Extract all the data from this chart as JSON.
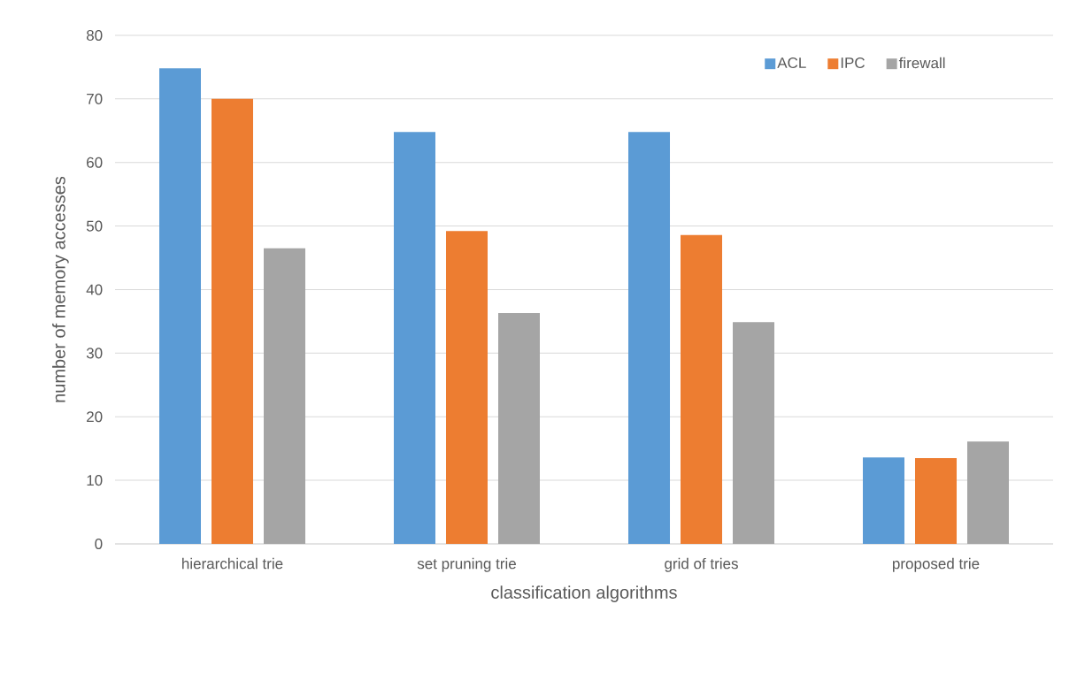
{
  "chart_data": {
    "type": "bar",
    "xlabel": "classification algorithms",
    "ylabel": "number of memory accesses",
    "categories": [
      "hierarchical trie",
      "set pruning trie",
      "grid of tries",
      "proposed trie"
    ],
    "series": [
      {
        "name": "ACL",
        "color": "#5b9bd5",
        "values": [
          74.8,
          64.8,
          64.8,
          13.6
        ]
      },
      {
        "name": "IPC",
        "color": "#ed7d31",
        "values": [
          70.0,
          49.2,
          48.6,
          13.5
        ]
      },
      {
        "name": "firewall",
        "color": "#a5a5a5",
        "values": [
          46.5,
          36.3,
          34.9,
          16.1
        ]
      }
    ],
    "ylim": [
      0,
      80
    ],
    "yticks": [
      0,
      10,
      20,
      30,
      40,
      50,
      60,
      70,
      80
    ],
    "grid": "y",
    "legend": "top right"
  }
}
